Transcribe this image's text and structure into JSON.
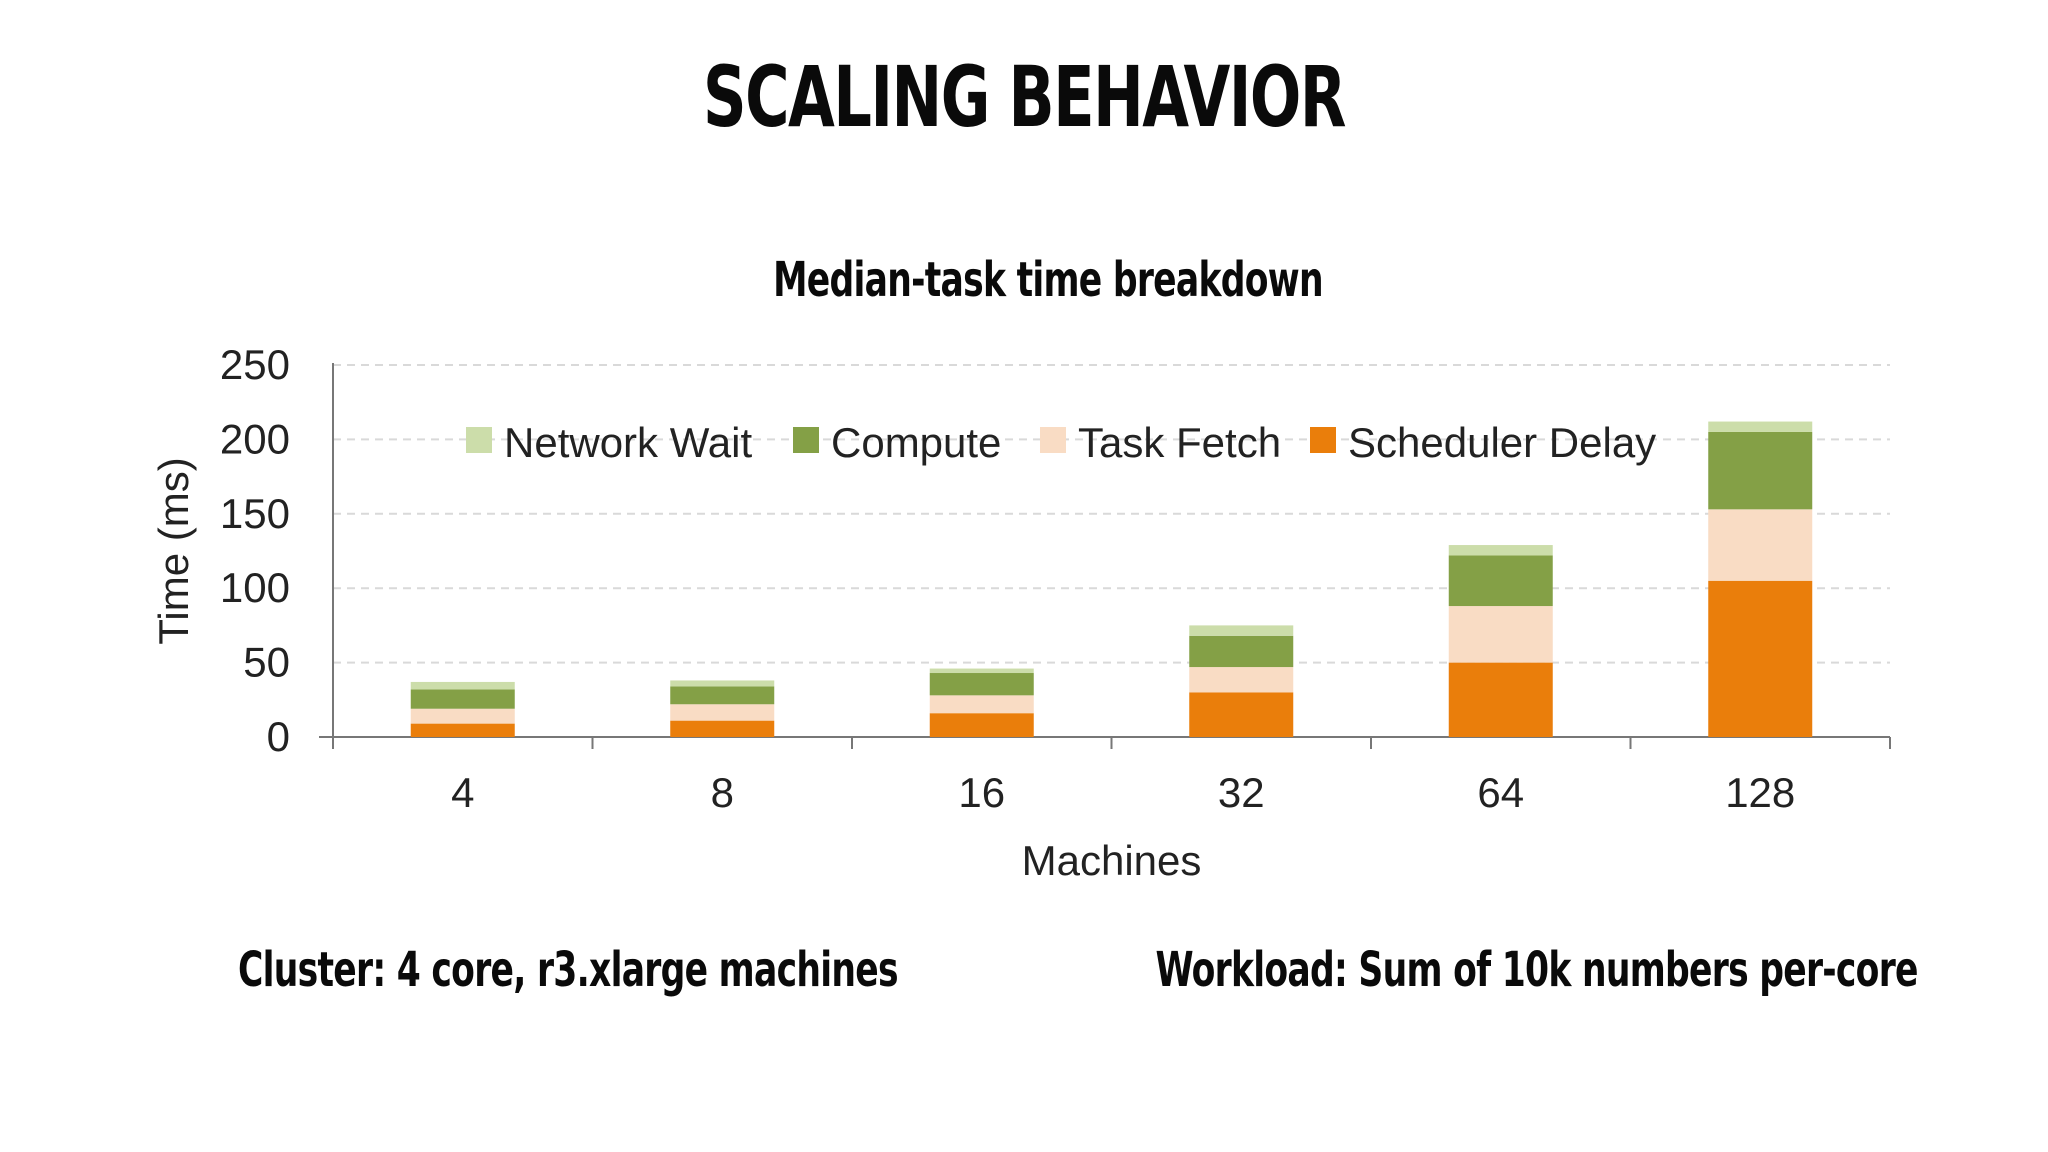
{
  "slide": {
    "title": "SCALING BEHAVIOR",
    "cluster_caption": "Cluster: 4 core, r3.xlarge machines",
    "workload_caption": "Workload: Sum of 10k numbers per-core"
  },
  "chart_data": {
    "type": "bar",
    "stacked": true,
    "title": "Median-task time breakdown",
    "xlabel": "Machines",
    "ylabel": "Time (ms)",
    "ylim": [
      0,
      250
    ],
    "yticks": [
      0,
      50,
      100,
      150,
      200,
      250
    ],
    "grid": true,
    "legend_position": "top",
    "categories": [
      "4",
      "8",
      "16",
      "32",
      "64",
      "128"
    ],
    "series": [
      {
        "name": "Scheduler Delay",
        "color": "#EA7E0B",
        "values": [
          9,
          11,
          16,
          30,
          50,
          105
        ]
      },
      {
        "name": "Task Fetch",
        "color": "#F9DCC4",
        "values": [
          10,
          11,
          12,
          17,
          38,
          48
        ]
      },
      {
        "name": "Compute",
        "color": "#84A046",
        "values": [
          13,
          12,
          15,
          21,
          34,
          52
        ]
      },
      {
        "name": "Network Wait",
        "color": "#CCDDAA",
        "values": [
          5,
          4,
          3,
          7,
          7,
          7
        ]
      }
    ],
    "legend_order": [
      "Network Wait",
      "Compute",
      "Task Fetch",
      "Scheduler Delay"
    ]
  }
}
